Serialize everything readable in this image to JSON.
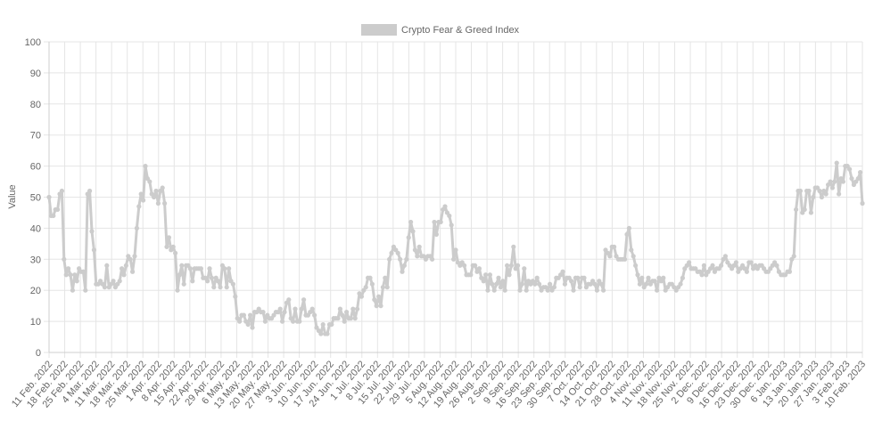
{
  "chart_data": {
    "type": "line",
    "legend_position": "top",
    "grid": true,
    "ylabel": "Value",
    "ylim": [
      0,
      100
    ],
    "yticks": [
      0,
      10,
      20,
      30,
      40,
      50,
      60,
      70,
      80,
      90,
      100
    ],
    "x_tick_labels": [
      "11 Feb. 2022",
      "18 Feb. 2022",
      "25 Feb. 2022",
      "4 Mar. 2022",
      "11 Mar. 2022",
      "18 Mar. 2022",
      "25 Mar. 2022",
      "1 Apr. 2022",
      "8 Apr. 2022",
      "15 Apr. 2022",
      "22 Apr. 2022",
      "29 Apr. 2022",
      "6 May. 2022",
      "13 May. 2022",
      "20 May. 2022",
      "27 May. 2022",
      "3 Jun. 2022",
      "10 Jun. 2022",
      "17 Jun. 2022",
      "24 Jun. 2022",
      "1 Jul. 2022",
      "8 Jul. 2022",
      "15 Jul. 2022",
      "22 Jul. 2022",
      "29 Jul. 2022",
      "5 Aug. 2022",
      "12 Aug. 2022",
      "19 Aug. 2022",
      "26 Aug. 2022",
      "2 Sep. 2022",
      "9 Sep. 2022",
      "16 Sep. 2022",
      "23 Sep. 2022",
      "30 Sep. 2022",
      "7 Oct. 2022",
      "14 Oct. 2022",
      "21 Oct. 2022",
      "28 Oct. 2022",
      "4 Nov. 2022",
      "11 Nov. 2022",
      "18 Nov. 2022",
      "25 Nov. 2022",
      "2 Dec. 2022",
      "9 Dec. 2022",
      "16 Dec. 2022",
      "23 Dec. 2022",
      "30 Dec. 2022",
      "6 Jan. 2023",
      "13 Jan. 2023",
      "20 Jan. 2023",
      "27 Jan. 2023",
      "3 Feb. 2023",
      "10 Feb. 2023"
    ],
    "line_color": "#cccccc",
    "series": [
      {
        "name": "Crypto Fear & Greed Index",
        "values": [
          50,
          44,
          44,
          46,
          46,
          51,
          52,
          30,
          25,
          27,
          25,
          20,
          25,
          23,
          27,
          26,
          26,
          20,
          51,
          52,
          39,
          33,
          22,
          22,
          23,
          22,
          21,
          28,
          21,
          22,
          23,
          21,
          22,
          23,
          27,
          25,
          28,
          31,
          30,
          26,
          31,
          40,
          47,
          51,
          49,
          60,
          56,
          55,
          51,
          50,
          52,
          48,
          52,
          53,
          48,
          34,
          37,
          33,
          34,
          32,
          20,
          25,
          28,
          22,
          28,
          28,
          27,
          23,
          27,
          27,
          27,
          27,
          24,
          24,
          23,
          27,
          24,
          21,
          24,
          23,
          21,
          28,
          27,
          21,
          27,
          23,
          22,
          18,
          11,
          10,
          12,
          12,
          10,
          9,
          12,
          8,
          13,
          13,
          14,
          13,
          13,
          10,
          12,
          11,
          11,
          12,
          13,
          13,
          14,
          10,
          13,
          16,
          17,
          11,
          10,
          14,
          10,
          10,
          14,
          17,
          12,
          12,
          13,
          14,
          12,
          8,
          7,
          6,
          9,
          6,
          6,
          9,
          9,
          11,
          11,
          11,
          14,
          12,
          10,
          13,
          11,
          11,
          14,
          11,
          14,
          19,
          18,
          20,
          21,
          24,
          24,
          22,
          17,
          15,
          18,
          15,
          21,
          24,
          21,
          30,
          32,
          34,
          33,
          32,
          30,
          26,
          28,
          30,
          37,
          42,
          39,
          33,
          31,
          34,
          31,
          31,
          30,
          31,
          31,
          30,
          42,
          38,
          42,
          42,
          46,
          47,
          45,
          44,
          41,
          30,
          33,
          29,
          28,
          29,
          28,
          25,
          25,
          25,
          28,
          28,
          26,
          27,
          24,
          23,
          25,
          20,
          25,
          22,
          20,
          22,
          24,
          21,
          23,
          20,
          28,
          25,
          28,
          34,
          27,
          28,
          20,
          22,
          27,
          20,
          23,
          22,
          23,
          22,
          24,
          22,
          20,
          21,
          21,
          20,
          22,
          20,
          21,
          24,
          24,
          25,
          26,
          22,
          24,
          24,
          23,
          20,
          24,
          24,
          21,
          24,
          24,
          21,
          22,
          22,
          23,
          22,
          20,
          23,
          22,
          20,
          33,
          32,
          31,
          34,
          34,
          31,
          30,
          30,
          30,
          30,
          38,
          40,
          33,
          31,
          28,
          25,
          22,
          24,
          21,
          22,
          24,
          22,
          23,
          23,
          20,
          24,
          23,
          24,
          20,
          21,
          22,
          22,
          21,
          20,
          21,
          22,
          24,
          27,
          28,
          29,
          27,
          27,
          27,
          26,
          26,
          25,
          28,
          25,
          26,
          27,
          28,
          26,
          27,
          27,
          28,
          30,
          31,
          29,
          28,
          27,
          28,
          29,
          26,
          27,
          28,
          27,
          26,
          29,
          29,
          27,
          28,
          27,
          28,
          28,
          27,
          26,
          26,
          27,
          28,
          29,
          28,
          26,
          25,
          25,
          25,
          26,
          26,
          30,
          31,
          46,
          52,
          52,
          45,
          46,
          52,
          52,
          45,
          50,
          53,
          53,
          52,
          50,
          52,
          51,
          54,
          55,
          53,
          55,
          61,
          51,
          56,
          55,
          60,
          60,
          59,
          56,
          54,
          55,
          56,
          58,
          48
        ]
      }
    ]
  }
}
